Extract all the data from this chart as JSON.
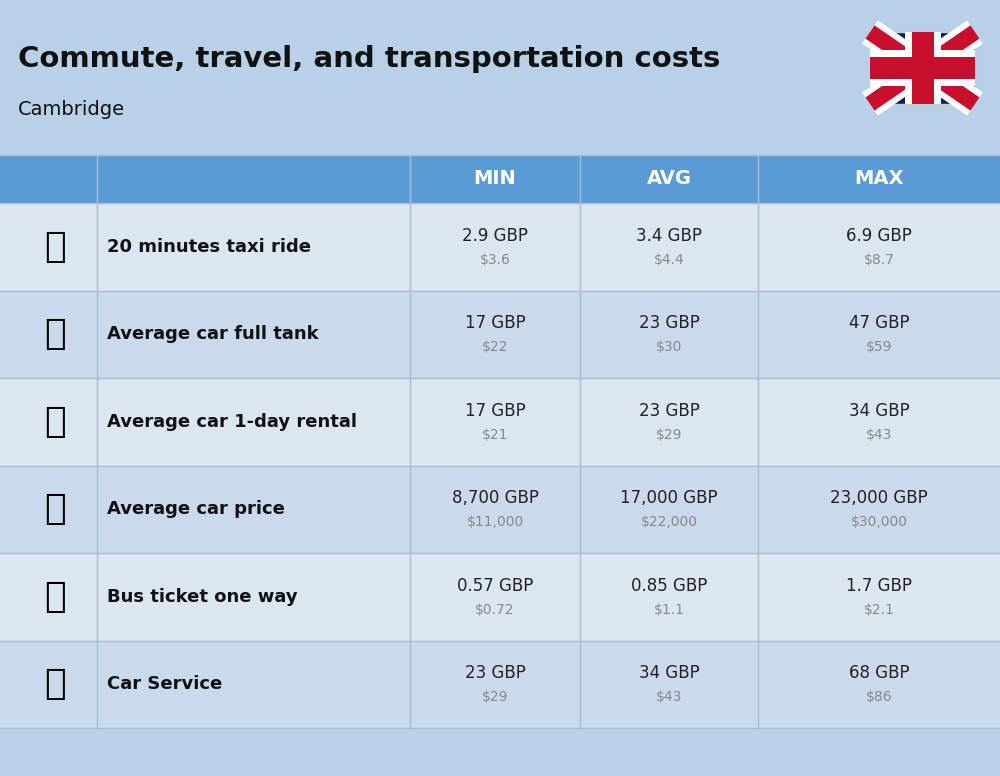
{
  "title": "Commute, travel, and transportation costs",
  "subtitle": "Cambridge",
  "bg_color": "#b8d0e8",
  "header_bg": "#5b9bd5",
  "header_text_color": "#ffffff",
  "row_bg_even": "#dce6f1",
  "row_bg_odd": "#cad9ec",
  "label_color": "#111111",
  "value_color": "#222222",
  "usd_color": "#888888",
  "divider_color": "#a8bdd0",
  "rows": [
    {
      "label": "20 minutes taxi ride",
      "min_gbp": "2.9 GBP",
      "min_usd": "$3.6",
      "avg_gbp": "3.4 GBP",
      "avg_usd": "$4.4",
      "max_gbp": "6.9 GBP",
      "max_usd": "$8.7"
    },
    {
      "label": "Average car full tank",
      "min_gbp": "17 GBP",
      "min_usd": "$22",
      "avg_gbp": "23 GBP",
      "avg_usd": "$30",
      "max_gbp": "47 GBP",
      "max_usd": "$59"
    },
    {
      "label": "Average car 1-day rental",
      "min_gbp": "17 GBP",
      "min_usd": "$21",
      "avg_gbp": "23 GBP",
      "avg_usd": "$29",
      "max_gbp": "34 GBP",
      "max_usd": "$43"
    },
    {
      "label": "Average car price",
      "min_gbp": "8,700 GBP",
      "min_usd": "$11,000",
      "avg_gbp": "17,000 GBP",
      "avg_usd": "$22,000",
      "max_gbp": "23,000 GBP",
      "max_usd": "$30,000"
    },
    {
      "label": "Bus ticket one way",
      "min_gbp": "0.57 GBP",
      "min_usd": "$0.72",
      "avg_gbp": "0.85 GBP",
      "avg_usd": "$1.1",
      "max_gbp": "1.7 GBP",
      "max_usd": "$2.1"
    },
    {
      "label": "Car Service",
      "min_gbp": "23 GBP",
      "min_usd": "$29",
      "avg_gbp": "34 GBP",
      "avg_usd": "$43",
      "max_gbp": "68 GBP",
      "max_usd": "$86"
    }
  ],
  "fig_width": 10.0,
  "fig_height": 7.76,
  "dpi": 100
}
